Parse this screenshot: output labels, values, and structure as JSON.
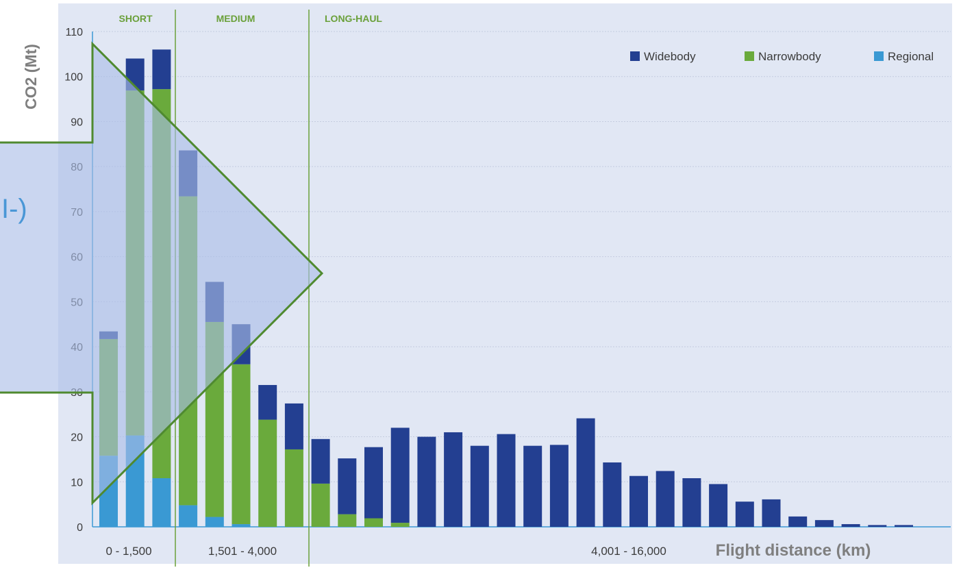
{
  "chart_data": {
    "type": "bar",
    "stacked": true,
    "title": "",
    "xlabel": "Flight distance (km)",
    "ylabel": "CO2  (Mt)",
    "ylim": [
      0,
      110
    ],
    "yticks": [
      0,
      10,
      20,
      30,
      40,
      50,
      60,
      70,
      80,
      90,
      100,
      110
    ],
    "grid": true,
    "legend_position": "top-right",
    "colors": {
      "Widebody": "#233f91",
      "Narrowbody": "#6aaa3c",
      "Regional": "#3a99d3",
      "background": "#e1e7f4",
      "segment_line": "#6aa03a",
      "overlay": "#a9bde6",
      "overlay_border": "#4f8a2f"
    },
    "segments": [
      {
        "label": "SHORT",
        "range_label": "0 -  1,500"
      },
      {
        "label": "MEDIUM",
        "range_label": "1,501 - 4,000"
      },
      {
        "label": "LONG-HAUL",
        "range_label": "4,001 - 16,000"
      }
    ],
    "overlay_glyph": "I-)",
    "series": [
      {
        "name": "Widebody",
        "values": [
          1.7,
          7.1,
          8.8,
          10.2,
          8.9,
          8.9,
          7.7,
          10.2,
          9.9,
          12.4,
          15.8,
          21.1,
          20,
          21,
          18,
          20.6,
          18,
          18.2,
          24.1,
          14.3,
          11.3,
          12.4,
          10.8,
          9.5,
          5.6,
          6.1,
          2.3,
          1.5,
          0.6,
          0.4,
          0.4,
          0
        ]
      },
      {
        "name": "Narrowbody",
        "values": [
          25.9,
          76.6,
          86.4,
          68.6,
          43.3,
          35.5,
          23.8,
          17.2,
          9.6,
          2.8,
          1.9,
          0.9,
          0,
          0,
          0,
          0,
          0,
          0,
          0,
          0,
          0,
          0,
          0,
          0,
          0,
          0,
          0,
          0,
          0,
          0,
          0,
          0
        ]
      },
      {
        "name": "Regional",
        "values": [
          15.8,
          20.3,
          10.8,
          4.8,
          2.2,
          0.6,
          0,
          0,
          0,
          0,
          0,
          0,
          0,
          0,
          0,
          0,
          0,
          0,
          0,
          0,
          0,
          0,
          0,
          0,
          0,
          0,
          0,
          0,
          0,
          0,
          0,
          0
        ]
      }
    ]
  }
}
